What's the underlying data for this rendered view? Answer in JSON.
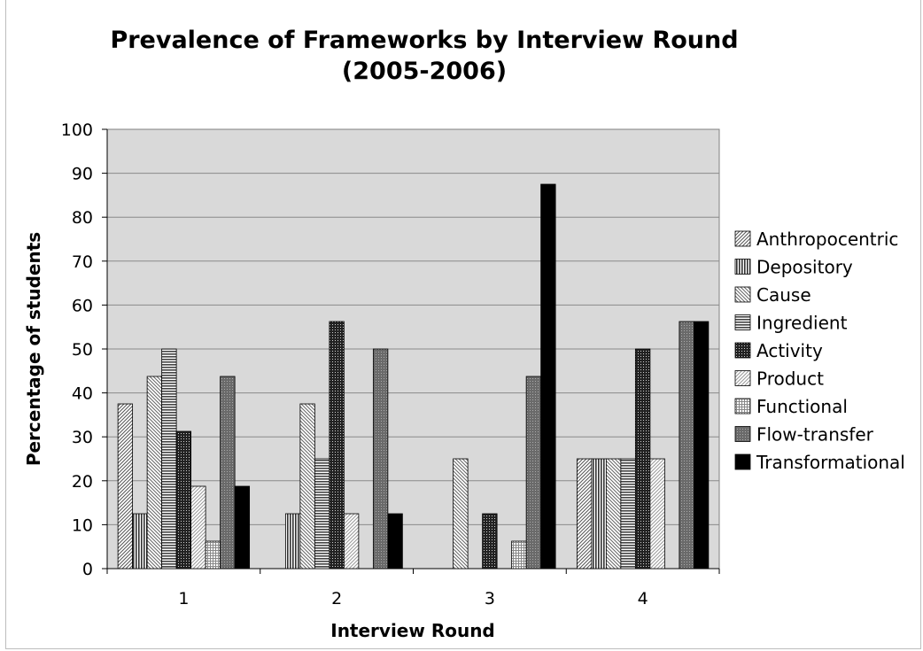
{
  "chart_data": {
    "type": "bar",
    "title": "Prevalence of Frameworks by Interview Round",
    "subtitle": "(2005-2006)",
    "xlabel": "Interview Round",
    "ylabel": "Percentage of students",
    "categories": [
      "1",
      "2",
      "3",
      "4"
    ],
    "ylim": [
      0,
      100
    ],
    "yticks": [
      0,
      10,
      20,
      30,
      40,
      50,
      60,
      70,
      80,
      90,
      100
    ],
    "grid": true,
    "legend_position": "right",
    "plot_background": "#d9d9d9",
    "series": [
      {
        "name": "Anthropocentric",
        "pattern": "diag-fine",
        "values": [
          37.5,
          0,
          0,
          25
        ]
      },
      {
        "name": "Depository",
        "pattern": "vertical",
        "values": [
          12.5,
          12.5,
          0,
          25
        ]
      },
      {
        "name": "Cause",
        "pattern": "diag-back",
        "values": [
          43.75,
          37.5,
          25,
          25
        ]
      },
      {
        "name": "Ingredient",
        "pattern": "horizontal",
        "values": [
          50,
          25,
          0,
          25
        ]
      },
      {
        "name": "Activity",
        "pattern": "dots-dark",
        "values": [
          31.25,
          56.25,
          12.5,
          50
        ]
      },
      {
        "name": "Product",
        "pattern": "diag-light",
        "values": [
          18.75,
          12.5,
          0,
          25
        ]
      },
      {
        "name": "Functional",
        "pattern": "grid-light",
        "values": [
          6.25,
          0,
          6.25,
          0
        ]
      },
      {
        "name": "Flow-transfer",
        "pattern": "dots-medium",
        "values": [
          43.75,
          50,
          43.75,
          56.25
        ]
      },
      {
        "name": "Transformational",
        "pattern": "solid-black",
        "values": [
          18.75,
          12.5,
          87.5,
          56.25
        ]
      }
    ]
  }
}
